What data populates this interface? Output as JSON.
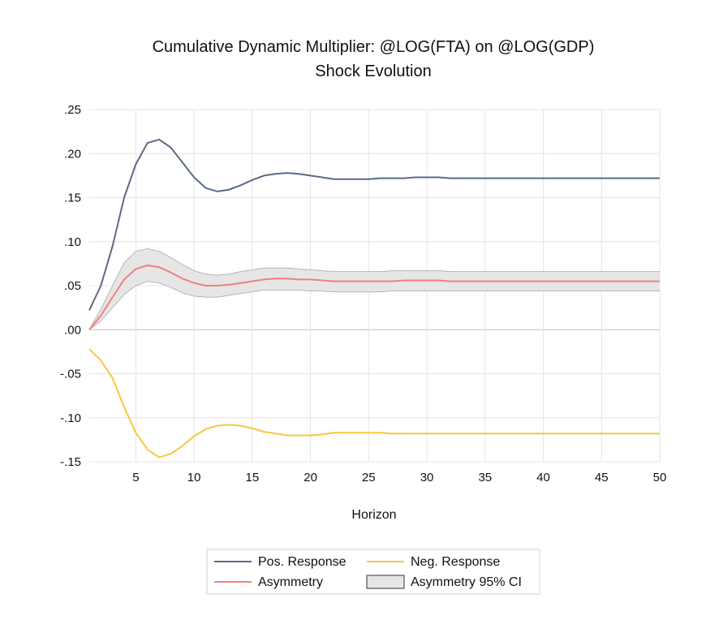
{
  "chart_data": {
    "type": "line",
    "title": "Cumulative Dynamic Multiplier: @LOG(FTA) on @LOG(GDP)",
    "subtitle": "Shock Evolution",
    "xlabel": "Horizon",
    "ylabel": "",
    "xlim": [
      1,
      50
    ],
    "ylim": [
      -0.15,
      0.25
    ],
    "xticks": [
      5,
      10,
      15,
      20,
      25,
      30,
      35,
      40,
      45,
      50
    ],
    "yticks": [
      -0.15,
      -0.1,
      -0.05,
      0.0,
      0.05,
      0.1,
      0.15,
      0.2,
      0.25
    ],
    "ytick_labels": [
      "-.15",
      "-.10",
      "-.05",
      ".00",
      ".05",
      ".10",
      ".15",
      ".20",
      ".25"
    ],
    "grid": true,
    "legend_position": "bottom",
    "x": [
      1,
      2,
      3,
      4,
      5,
      6,
      7,
      8,
      9,
      10,
      11,
      12,
      13,
      14,
      15,
      16,
      17,
      18,
      19,
      20,
      21,
      22,
      23,
      24,
      25,
      26,
      27,
      28,
      29,
      30,
      31,
      32,
      33,
      34,
      35,
      36,
      37,
      38,
      39,
      40,
      41,
      42,
      43,
      44,
      45,
      46,
      47,
      48,
      49,
      50
    ],
    "series": [
      {
        "name": "Pos. Response",
        "color": "#5b6a86",
        "style": "line",
        "values": [
          0.022,
          0.05,
          0.095,
          0.15,
          0.188,
          0.212,
          0.216,
          0.207,
          0.19,
          0.173,
          0.161,
          0.157,
          0.159,
          0.164,
          0.17,
          0.175,
          0.177,
          0.178,
          0.177,
          0.175,
          0.173,
          0.171,
          0.171,
          0.171,
          0.171,
          0.172,
          0.172,
          0.172,
          0.173,
          0.173,
          0.173,
          0.172,
          0.172,
          0.172,
          0.172,
          0.172,
          0.172,
          0.172,
          0.172,
          0.172,
          0.172,
          0.172,
          0.172,
          0.172,
          0.172,
          0.172,
          0.172,
          0.172,
          0.172,
          0.172
        ]
      },
      {
        "name": "Neg. Response",
        "color": "#f5c842",
        "style": "line",
        "values": [
          -0.022,
          -0.035,
          -0.055,
          -0.088,
          -0.117,
          -0.136,
          -0.145,
          -0.141,
          -0.132,
          -0.121,
          -0.113,
          -0.109,
          -0.108,
          -0.109,
          -0.112,
          -0.116,
          -0.118,
          -0.12,
          -0.12,
          -0.12,
          -0.119,
          -0.117,
          -0.117,
          -0.117,
          -0.117,
          -0.117,
          -0.118,
          -0.118,
          -0.118,
          -0.118,
          -0.118,
          -0.118,
          -0.118,
          -0.118,
          -0.118,
          -0.118,
          -0.118,
          -0.118,
          -0.118,
          -0.118,
          -0.118,
          -0.118,
          -0.118,
          -0.118,
          -0.118,
          -0.118,
          -0.118,
          -0.118,
          -0.118,
          -0.118
        ]
      },
      {
        "name": "Asymmetry",
        "color": "#f08080",
        "style": "line",
        "values": [
          0.0,
          0.016,
          0.037,
          0.057,
          0.069,
          0.073,
          0.071,
          0.065,
          0.058,
          0.053,
          0.05,
          0.05,
          0.051,
          0.053,
          0.055,
          0.057,
          0.058,
          0.058,
          0.057,
          0.057,
          0.056,
          0.055,
          0.055,
          0.055,
          0.055,
          0.055,
          0.055,
          0.056,
          0.056,
          0.056,
          0.056,
          0.055,
          0.055,
          0.055,
          0.055,
          0.055,
          0.055,
          0.055,
          0.055,
          0.055,
          0.055,
          0.055,
          0.055,
          0.055,
          0.055,
          0.055,
          0.055,
          0.055,
          0.055,
          0.055
        ]
      },
      {
        "name": "Asymmetry 95% CI",
        "color": "#e6e6e6",
        "style": "band",
        "lower": [
          0.0,
          0.01,
          0.025,
          0.04,
          0.05,
          0.055,
          0.053,
          0.048,
          0.042,
          0.038,
          0.037,
          0.037,
          0.039,
          0.041,
          0.043,
          0.045,
          0.045,
          0.045,
          0.045,
          0.044,
          0.044,
          0.043,
          0.043,
          0.043,
          0.043,
          0.043,
          0.044,
          0.044,
          0.044,
          0.044,
          0.044,
          0.044,
          0.044,
          0.044,
          0.044,
          0.044,
          0.044,
          0.044,
          0.044,
          0.044,
          0.044,
          0.044,
          0.044,
          0.044,
          0.044,
          0.044,
          0.044,
          0.044,
          0.044,
          0.044
        ],
        "upper": [
          0.0,
          0.023,
          0.05,
          0.076,
          0.089,
          0.092,
          0.089,
          0.082,
          0.074,
          0.067,
          0.063,
          0.062,
          0.063,
          0.066,
          0.068,
          0.07,
          0.07,
          0.07,
          0.069,
          0.068,
          0.067,
          0.066,
          0.066,
          0.066,
          0.066,
          0.066,
          0.067,
          0.067,
          0.067,
          0.067,
          0.067,
          0.066,
          0.066,
          0.066,
          0.066,
          0.066,
          0.066,
          0.066,
          0.066,
          0.066,
          0.066,
          0.066,
          0.066,
          0.066,
          0.066,
          0.066,
          0.066,
          0.066,
          0.066,
          0.066
        ]
      }
    ]
  },
  "colors": {
    "grid": "#e5e5e5",
    "zero_line": "#bdbdbd",
    "band_stroke": "#b5b5b5",
    "legend_border": "#d0d0d0"
  }
}
